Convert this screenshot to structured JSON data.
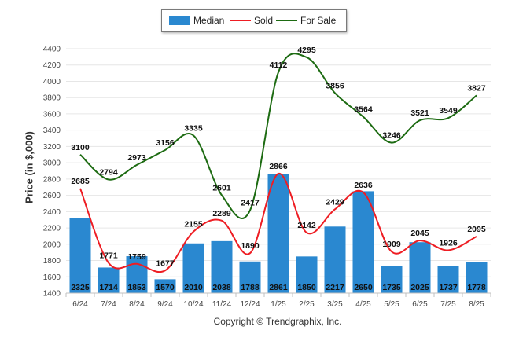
{
  "colors": {
    "bar": "#2a88d0",
    "sold": "#ee1d23",
    "forsale": "#1d6b12",
    "grid": "#e6e6e6",
    "axis": "#c0c0c0"
  },
  "legend": {
    "median": "Median",
    "sold": "Sold",
    "forsale": "For Sale"
  },
  "copyright": "Copyright © Trendgraphix, Inc.",
  "chart_data": {
    "type": "bar",
    "categories": [
      "6/24",
      "7/24",
      "8/24",
      "9/24",
      "10/24",
      "11/24",
      "12/24",
      "1/25",
      "2/25",
      "3/25",
      "4/25",
      "5/25",
      "6/25",
      "7/25",
      "8/25"
    ],
    "ylabel": "Price (in $,000)",
    "xlabel": "",
    "ylim": [
      1400,
      4400
    ],
    "yticks": [
      1400,
      1600,
      1800,
      2000,
      2200,
      2400,
      2600,
      2800,
      3000,
      3200,
      3400,
      3600,
      3800,
      4000,
      4200,
      4400
    ],
    "grid": true,
    "legend_position": "top",
    "series": [
      {
        "name": "Median",
        "type": "bar",
        "values": [
          2325,
          1714,
          1853,
          1570,
          2010,
          2038,
          1788,
          2861,
          1850,
          2217,
          2650,
          1735,
          2025,
          1737,
          1778
        ]
      },
      {
        "name": "Sold",
        "type": "line",
        "values": [
          2685,
          1771,
          1759,
          1677,
          2155,
          2289,
          1890,
          2866,
          2142,
          2429,
          2636,
          1909,
          2045,
          1926,
          2095
        ]
      },
      {
        "name": "For Sale",
        "type": "line",
        "values": [
          3100,
          2794,
          2973,
          3156,
          3335,
          2601,
          2417,
          4112,
          4295,
          3856,
          3564,
          3246,
          3521,
          3549,
          3827
        ]
      }
    ]
  }
}
